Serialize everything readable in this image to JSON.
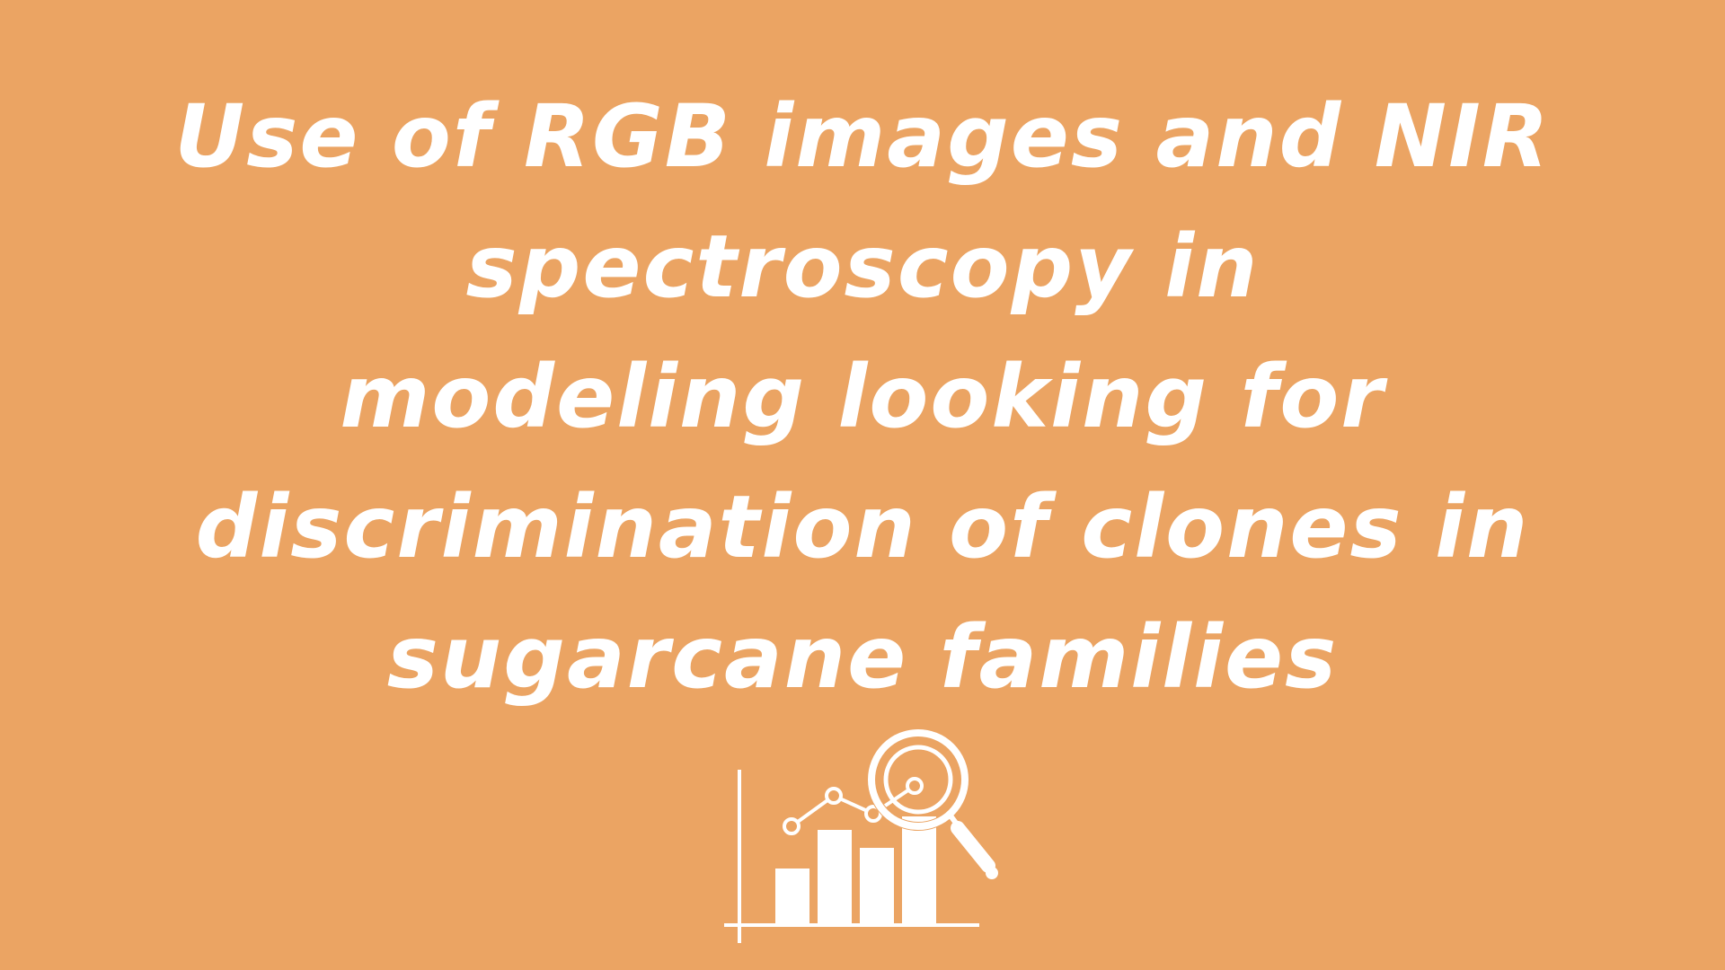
{
  "title": {
    "lines": [
      "Use of RGB images and NIR",
      "spectroscopy in",
      "modeling looking for",
      "discrimination of clones in",
      "sugarcane families"
    ]
  },
  "colors": {
    "background": "#EBA463",
    "foreground": "#FFFFFF"
  },
  "icons": {
    "illustration": "chart-with-magnifier-icon"
  }
}
